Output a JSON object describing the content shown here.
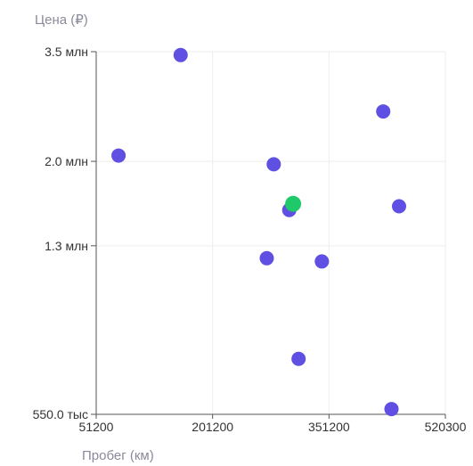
{
  "chart_data": {
    "type": "scatter",
    "ylabel": "Цена (₽)",
    "xlabel": "Пробег (км)",
    "x_ticks": [
      {
        "value": 51200,
        "label": "51200"
      },
      {
        "value": 201200,
        "label": "201200"
      },
      {
        "value": 351200,
        "label": "351200"
      },
      {
        "value": 520300,
        "label": "520300"
      }
    ],
    "y_ticks": [
      {
        "value": 550000,
        "label": "550.0 тыс"
      },
      {
        "value": 1300000,
        "label": "1.3 млн"
      },
      {
        "value": 2000000,
        "label": "2.0 млн"
      },
      {
        "value": 3500000,
        "label": "3.5 млн"
      }
    ],
    "y_scale": "log",
    "xlim": [
      51200,
      520300
    ],
    "ylim": [
      550000,
      3500000
    ],
    "grid": true,
    "colors": {
      "default": "#5f4fe3",
      "highlight": "#1fc96a"
    },
    "points": [
      {
        "x": 160000,
        "y": 3440000,
        "highlight": false
      },
      {
        "x": 80000,
        "y": 2060000,
        "highlight": false
      },
      {
        "x": 280000,
        "y": 1970000,
        "highlight": false
      },
      {
        "x": 300000,
        "y": 1560000,
        "highlight": false
      },
      {
        "x": 305000,
        "y": 1610000,
        "highlight": true
      },
      {
        "x": 271000,
        "y": 1220000,
        "highlight": false
      },
      {
        "x": 342000,
        "y": 1200000,
        "highlight": false
      },
      {
        "x": 312000,
        "y": 730000,
        "highlight": false
      },
      {
        "x": 430000,
        "y": 2580000,
        "highlight": false
      },
      {
        "x": 453000,
        "y": 1590000,
        "highlight": false
      },
      {
        "x": 442000,
        "y": 565000,
        "highlight": false
      }
    ]
  }
}
